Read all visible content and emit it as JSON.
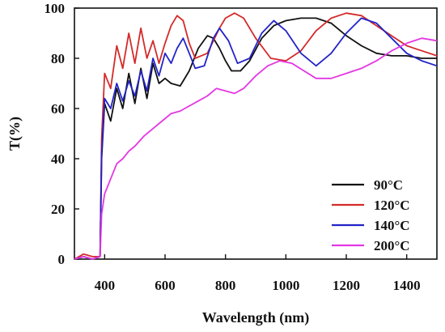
{
  "chart_data": {
    "type": "line",
    "xlabel": "Wavelength (nm)",
    "ylabel": "T(%)",
    "xlim": [
      300,
      1500
    ],
    "ylim": [
      0,
      100
    ],
    "xticks": [
      400,
      600,
      800,
      1000,
      1200,
      1400
    ],
    "yticks": [
      0,
      20,
      40,
      60,
      80,
      100
    ],
    "grid": false,
    "legend_position": "bottom-right",
    "series": [
      {
        "name": "90°C",
        "color": "#111111",
        "x": [
          300,
          330,
          360,
          385,
          390,
          400,
          420,
          440,
          460,
          480,
          500,
          520,
          540,
          560,
          580,
          600,
          620,
          650,
          680,
          710,
          740,
          760,
          780,
          800,
          820,
          850,
          880,
          920,
          960,
          1000,
          1050,
          1100,
          1150,
          1200,
          1250,
          1300,
          1350,
          1400,
          1450,
          1500
        ],
        "y": [
          0,
          1,
          0,
          1,
          40,
          62,
          55,
          68,
          60,
          74,
          62,
          76,
          64,
          78,
          70,
          72,
          70,
          69,
          75,
          84,
          89,
          88,
          84,
          79,
          75,
          75,
          79,
          88,
          93,
          95,
          96,
          96,
          94,
          89,
          85,
          82,
          81,
          81,
          80,
          80
        ]
      },
      {
        "name": "120°C",
        "color": "#d42a2a",
        "x": [
          300,
          330,
          360,
          385,
          390,
          400,
          420,
          440,
          460,
          480,
          500,
          520,
          540,
          560,
          580,
          600,
          620,
          640,
          660,
          680,
          700,
          740,
          780,
          800,
          830,
          860,
          900,
          950,
          1000,
          1050,
          1100,
          1150,
          1200,
          1250,
          1300,
          1350,
          1400,
          1450,
          1500
        ],
        "y": [
          0,
          2,
          1,
          1,
          48,
          74,
          68,
          85,
          76,
          90,
          78,
          92,
          80,
          87,
          78,
          86,
          93,
          97,
          95,
          86,
          80,
          82,
          92,
          96,
          98,
          96,
          88,
          80,
          79,
          83,
          91,
          96,
          98,
          97,
          93,
          89,
          85,
          83,
          81
        ]
      },
      {
        "name": "140°C",
        "color": "#2323c8",
        "x": [
          300,
          330,
          360,
          385,
          390,
          400,
          420,
          440,
          460,
          480,
          500,
          520,
          540,
          560,
          580,
          600,
          620,
          640,
          660,
          680,
          700,
          730,
          760,
          780,
          810,
          840,
          880,
          920,
          960,
          1000,
          1050,
          1100,
          1150,
          1200,
          1250,
          1300,
          1350,
          1400,
          1450,
          1500
        ],
        "y": [
          0,
          1,
          0,
          1,
          42,
          64,
          60,
          70,
          63,
          71,
          65,
          75,
          67,
          80,
          73,
          82,
          78,
          84,
          88,
          82,
          76,
          77,
          88,
          92,
          87,
          78,
          80,
          90,
          95,
          91,
          82,
          77,
          82,
          90,
          96,
          94,
          88,
          82,
          79,
          77
        ]
      },
      {
        "name": "200°C",
        "color": "#e437e4",
        "x": [
          300,
          330,
          360,
          385,
          390,
          400,
          420,
          440,
          460,
          480,
          500,
          530,
          560,
          590,
          620,
          650,
          680,
          710,
          740,
          770,
          800,
          830,
          860,
          900,
          940,
          980,
          1020,
          1060,
          1100,
          1150,
          1200,
          1250,
          1300,
          1350,
          1400,
          1450,
          1500
        ],
        "y": [
          0,
          1,
          0,
          1,
          18,
          26,
          32,
          38,
          40,
          43,
          45,
          49,
          52,
          55,
          58,
          59,
          61,
          63,
          65,
          68,
          67,
          66,
          68,
          73,
          77,
          79,
          78,
          75,
          72,
          72,
          74,
          76,
          79,
          83,
          86,
          88,
          87
        ]
      }
    ]
  }
}
